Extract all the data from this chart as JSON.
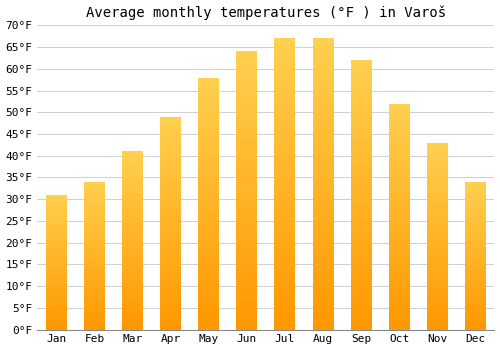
{
  "title": "Average monthly temperatures (°F ) in Varoš",
  "months": [
    "Jan",
    "Feb",
    "Mar",
    "Apr",
    "May",
    "Jun",
    "Jul",
    "Aug",
    "Sep",
    "Oct",
    "Nov",
    "Dec"
  ],
  "values": [
    31,
    34,
    41,
    49,
    58,
    64,
    67,
    67,
    62,
    52,
    43,
    34
  ],
  "ylim": [
    0,
    70
  ],
  "yticks": [
    0,
    5,
    10,
    15,
    20,
    25,
    30,
    35,
    40,
    45,
    50,
    55,
    60,
    65,
    70
  ],
  "ytick_labels": [
    "0°F",
    "5°F",
    "10°F",
    "15°F",
    "20°F",
    "25°F",
    "30°F",
    "35°F",
    "40°F",
    "45°F",
    "50°F",
    "55°F",
    "60°F",
    "65°F",
    "70°F"
  ],
  "bar_color_top": "#FFC830",
  "bar_color_bottom": "#FF9800",
  "background_color": "#ffffff",
  "grid_color": "#d0d0d0",
  "title_fontsize": 10,
  "tick_fontsize": 8,
  "bar_width": 0.55,
  "figsize": [
    5.0,
    3.5
  ],
  "dpi": 100
}
